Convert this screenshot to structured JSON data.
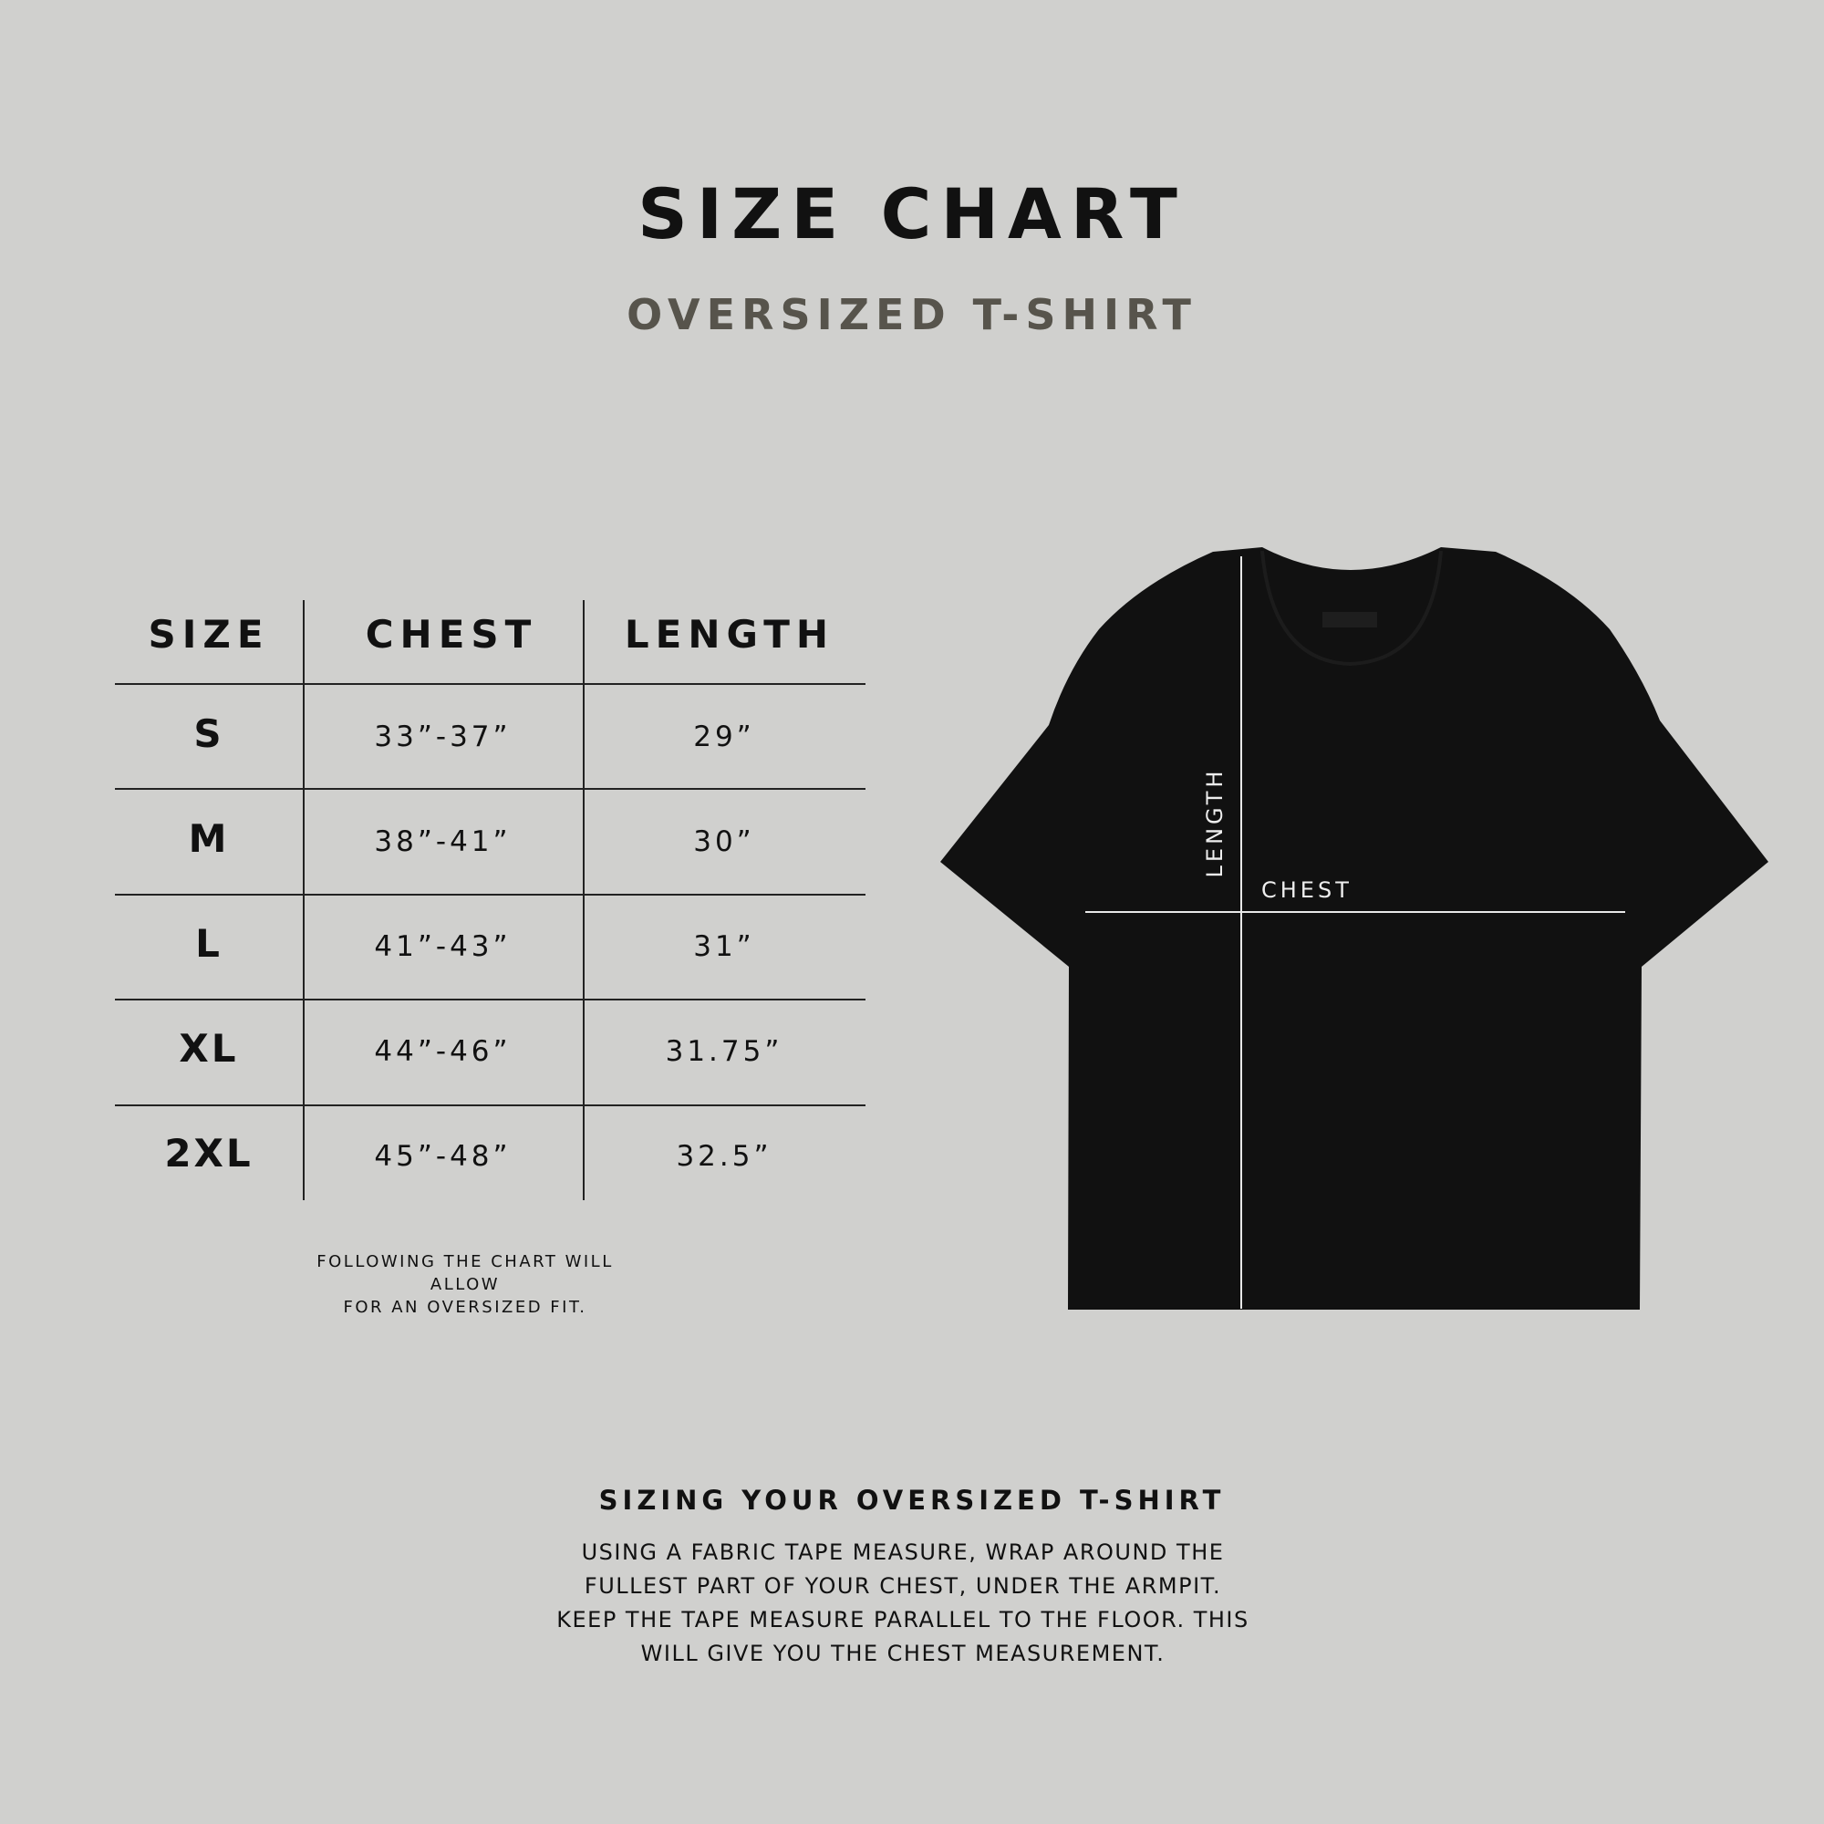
{
  "header": {
    "title": "SIZE CHART",
    "subtitle": "OVERSIZED T-SHIRT"
  },
  "table": {
    "columns": [
      "SIZE",
      "CHEST",
      "LENGTH"
    ],
    "rows": [
      {
        "size": "S",
        "chest": "33”-37”",
        "length": "29”"
      },
      {
        "size": "M",
        "chest": "38”-41”",
        "length": "30”"
      },
      {
        "size": "L",
        "chest": "41”-43”",
        "length": "31”"
      },
      {
        "size": "XL",
        "chest": "44”-46”",
        "length": "31.75”"
      },
      {
        "size": "2XL",
        "chest": "45”-48”",
        "length": "32.5”"
      }
    ],
    "note": [
      "FOLLOWING THE CHART WILL ALLOW",
      "FOR AN OVERSIZED FIT."
    ]
  },
  "diagram": {
    "length_label": "LENGTH",
    "chest_label": "CHEST",
    "shirt_color": "#111111"
  },
  "guide": {
    "heading": "SIZING YOUR OVERSIZED T-SHIRT",
    "lines": [
      "USING A FABRIC TAPE MEASURE, WRAP AROUND THE",
      "FULLEST PART OF YOUR CHEST, UNDER THE ARMPIT.",
      "KEEP THE TAPE MEASURE PARALLEL TO THE FLOOR. THIS",
      "WILL GIVE YOU THE CHEST MEASUREMENT."
    ]
  }
}
